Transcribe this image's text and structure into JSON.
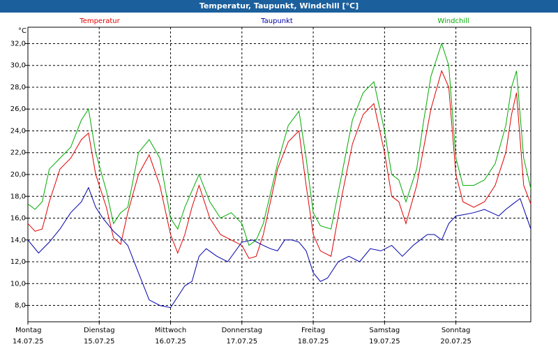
{
  "chart_data": {
    "type": "line",
    "title": "Temperatur, Taupunkt, Windchill [°C]",
    "ylabel": "°C",
    "ylim": [
      6.5,
      33.5
    ],
    "yticks": [
      "8,0",
      "10,0",
      "12,0",
      "14,0",
      "16,0",
      "18,0",
      "20,0",
      "22,0",
      "24,0",
      "26,0",
      "28,0",
      "30,0",
      "32,0"
    ],
    "ytick_values": [
      8,
      10,
      12,
      14,
      16,
      18,
      20,
      22,
      24,
      26,
      28,
      30,
      32
    ],
    "grid": true,
    "legend_position": "top",
    "xlim": [
      0,
      7.05
    ],
    "days": [
      {
        "name": "Montag",
        "date": "14.07.25"
      },
      {
        "name": "Dienstag",
        "date": "15.07.25"
      },
      {
        "name": "Mittwoch",
        "date": "16.07.25"
      },
      {
        "name": "Donnerstag",
        "date": "17.07.25"
      },
      {
        "name": "Freitag",
        "date": "18.07.25"
      },
      {
        "name": "Samstag",
        "date": "19.07.25"
      },
      {
        "name": "Sonntag",
        "date": "20.07.25"
      }
    ],
    "series": [
      {
        "name": "Temperatur",
        "color": "#e00000",
        "x": [
          0,
          0.1,
          0.2,
          0.3,
          0.45,
          0.6,
          0.75,
          0.85,
          0.95,
          1.1,
          1.2,
          1.3,
          1.4,
          1.55,
          1.7,
          1.85,
          2.0,
          2.1,
          2.2,
          2.3,
          2.4,
          2.55,
          2.7,
          2.85,
          3.0,
          3.1,
          3.2,
          3.3,
          3.5,
          3.65,
          3.8,
          3.9,
          4.0,
          4.1,
          4.25,
          4.4,
          4.55,
          4.7,
          4.85,
          5.0,
          5.1,
          5.2,
          5.3,
          5.45,
          5.55,
          5.65,
          5.8,
          5.9,
          6.0,
          6.1,
          6.25,
          6.4,
          6.55,
          6.7,
          6.78,
          6.85,
          6.95,
          7.05
        ],
        "y": [
          15.5,
          14.8,
          15.0,
          17.5,
          20.5,
          21.5,
          23.2,
          23.8,
          20.0,
          17.0,
          14.2,
          13.6,
          16.5,
          20.0,
          21.8,
          19.0,
          14.5,
          12.8,
          14.5,
          17.0,
          19.0,
          16.0,
          14.5,
          14.0,
          13.5,
          12.3,
          12.5,
          14.5,
          20.5,
          23.0,
          24.0,
          19.0,
          14.5,
          13.0,
          12.5,
          18.0,
          22.8,
          25.5,
          26.5,
          22.0,
          18.0,
          17.5,
          15.5,
          19.0,
          22.5,
          26.0,
          29.5,
          28.0,
          20.0,
          17.5,
          17.0,
          17.5,
          19.0,
          22.0,
          25.5,
          27.5,
          19.0,
          17.3
        ]
      },
      {
        "name": "Taupunkt",
        "color": "#0000aa",
        "x": [
          0,
          0.15,
          0.3,
          0.45,
          0.6,
          0.75,
          0.85,
          0.95,
          1.05,
          1.2,
          1.3,
          1.4,
          1.55,
          1.7,
          1.85,
          2.0,
          2.1,
          2.2,
          2.3,
          2.4,
          2.5,
          2.65,
          2.8,
          3.0,
          3.15,
          3.3,
          3.4,
          3.5,
          3.6,
          3.7,
          3.8,
          3.9,
          4.0,
          4.1,
          4.2,
          4.35,
          4.5,
          4.65,
          4.8,
          4.95,
          5.1,
          5.25,
          5.4,
          5.5,
          5.6,
          5.7,
          5.8,
          5.9,
          6.0,
          6.1,
          6.25,
          6.4,
          6.5,
          6.6,
          6.7,
          6.8,
          6.9,
          7.05
        ],
        "y": [
          14.0,
          12.8,
          13.8,
          15.0,
          16.5,
          17.5,
          18.8,
          17.0,
          16.0,
          14.8,
          14.2,
          13.5,
          11.0,
          8.5,
          8.0,
          7.8,
          8.8,
          9.8,
          10.2,
          12.5,
          13.2,
          12.5,
          12.0,
          13.8,
          14.0,
          13.5,
          13.2,
          13.0,
          14.0,
          14.0,
          13.8,
          13.0,
          11.0,
          10.2,
          10.5,
          12.0,
          12.5,
          12.0,
          13.2,
          13.0,
          13.5,
          12.5,
          13.5,
          14.0,
          14.5,
          14.5,
          14.0,
          15.5,
          16.2,
          16.3,
          16.5,
          16.8,
          16.5,
          16.2,
          16.8,
          17.3,
          17.8,
          15.0
        ]
      },
      {
        "name": "Windchill",
        "color": "#00aa00",
        "x": [
          0,
          0.1,
          0.2,
          0.3,
          0.45,
          0.6,
          0.75,
          0.85,
          0.95,
          1.1,
          1.2,
          1.3,
          1.4,
          1.55,
          1.7,
          1.85,
          2.0,
          2.1,
          2.2,
          2.3,
          2.4,
          2.55,
          2.7,
          2.85,
          3.0,
          3.1,
          3.2,
          3.3,
          3.5,
          3.65,
          3.8,
          3.9,
          4.0,
          4.1,
          4.25,
          4.4,
          4.55,
          4.7,
          4.85,
          5.0,
          5.1,
          5.2,
          5.3,
          5.45,
          5.55,
          5.65,
          5.8,
          5.9,
          6.0,
          6.1,
          6.25,
          6.4,
          6.55,
          6.7,
          6.78,
          6.85,
          6.95,
          7.05
        ],
        "y": [
          17.3,
          16.8,
          17.5,
          20.5,
          21.5,
          22.5,
          25.0,
          26.0,
          22.0,
          18.5,
          15.5,
          16.5,
          17.0,
          22.0,
          23.2,
          21.5,
          16.0,
          15.0,
          17.0,
          18.5,
          20.0,
          17.5,
          16.0,
          16.5,
          15.5,
          13.5,
          14.0,
          15.5,
          21.0,
          24.5,
          25.8,
          21.5,
          16.5,
          15.3,
          15.0,
          20.0,
          25.0,
          27.5,
          28.5,
          24.0,
          20.0,
          19.5,
          17.5,
          20.5,
          25.0,
          29.0,
          32.0,
          30.0,
          21.5,
          19.0,
          19.0,
          19.5,
          21.0,
          24.5,
          28.0,
          29.5,
          21.5,
          18.7
        ]
      }
    ]
  }
}
